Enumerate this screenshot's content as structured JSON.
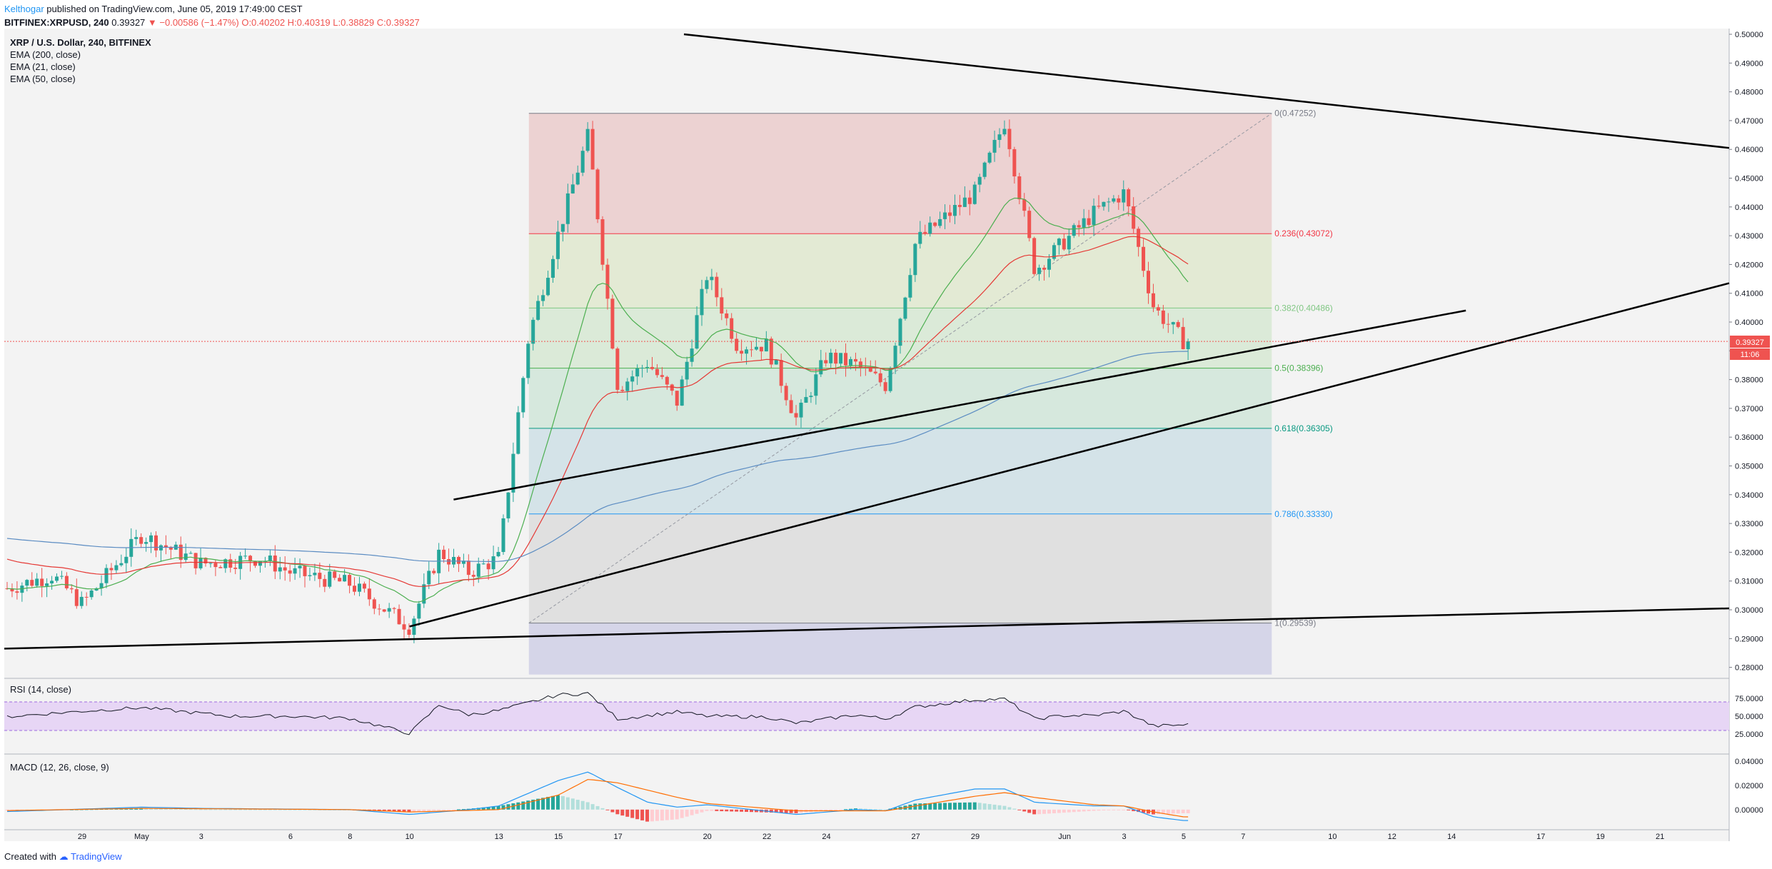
{
  "header": {
    "author": "Kelthogar",
    "published": "published on TradingView.com, June 05, 2019 17:49:00 CEST",
    "symbol_line": "BITFINEX:XRPUSD, 240",
    "last": "0.39327",
    "change": "▼ −0.00586 (−1.47%)",
    "open": "O:0.40202",
    "high": "H:0.40319",
    "low": "L:0.38829",
    "close": "C:0.39327"
  },
  "legend": {
    "pair": "XRP / U.S. Dollar, 240, BITFINEX",
    "ema200": "EMA (200, close)",
    "ema21": "EMA (21, close)",
    "ema50": "EMA (50, close)",
    "rsi": "RSI (14, close)",
    "macd": "MACD (12, 26, close, 9)"
  },
  "price_tag": {
    "value": "0.39327",
    "countdown": "11:06"
  },
  "footer": {
    "created_with": "Created with",
    "brand": "TradingView"
  },
  "colors": {
    "candle_up": "#26a69a",
    "candle_down": "#ef5350",
    "ema200": "#5b8cc2",
    "ema21": "#4caf50",
    "ema50": "#e53935",
    "trendline": "#000000",
    "rsi": "#131722",
    "rsi_band": "#e7d6f5",
    "macd": "#2196f3",
    "signal": "#ff6d00"
  },
  "chart_data": {
    "type": "candlestick",
    "title": "XRP / U.S. Dollar, 240, BITFINEX",
    "price_axis": {
      "ylim": [
        0.275,
        0.5
      ],
      "ticks": [
        "0.50000",
        "0.49000",
        "0.48000",
        "0.47000",
        "0.46000",
        "0.45000",
        "0.44000",
        "0.43000",
        "0.42000",
        "0.41000",
        "0.40000",
        "0.39000",
        "0.38000",
        "0.37000",
        "0.36000",
        "0.35000",
        "0.34000",
        "0.33000",
        "0.32000",
        "0.31000",
        "0.30000",
        "0.29000",
        "0.28000"
      ]
    },
    "time_axis": {
      "ticks": [
        "29",
        "May",
        "3",
        "6",
        "8",
        "10",
        "13",
        "15",
        "17",
        "20",
        "22",
        "24",
        "27",
        "29",
        "Jun",
        "3",
        "5",
        "7",
        "10",
        "12",
        "14",
        "17",
        "19",
        "21"
      ]
    },
    "price_path": [
      {
        "d": "Apr 26",
        "p": 0.306
      },
      {
        "d": "Apr 28",
        "p": 0.312
      },
      {
        "d": "Apr 29",
        "p": 0.302
      },
      {
        "d": "May 1",
        "p": 0.326
      },
      {
        "d": "May 3",
        "p": 0.316
      },
      {
        "d": "May 5",
        "p": 0.318
      },
      {
        "d": "May 6",
        "p": 0.313
      },
      {
        "d": "May 8",
        "p": 0.309
      },
      {
        "d": "May 10",
        "p": 0.294
      },
      {
        "d": "May 11",
        "p": 0.32
      },
      {
        "d": "May 12",
        "p": 0.313
      },
      {
        "d": "May 13",
        "p": 0.318
      },
      {
        "d": "May 14",
        "p": 0.395
      },
      {
        "d": "May 15",
        "p": 0.431
      },
      {
        "d": "May 16",
        "p": 0.465
      },
      {
        "d": "May 17",
        "p": 0.377
      },
      {
        "d": "May 18",
        "p": 0.386
      },
      {
        "d": "May 19",
        "p": 0.372
      },
      {
        "d": "May 20",
        "p": 0.417
      },
      {
        "d": "May 21",
        "p": 0.392
      },
      {
        "d": "May 22",
        "p": 0.392
      },
      {
        "d": "May 23",
        "p": 0.366
      },
      {
        "d": "May 24",
        "p": 0.388
      },
      {
        "d": "May 25",
        "p": 0.385
      },
      {
        "d": "May 26",
        "p": 0.378
      },
      {
        "d": "May 27",
        "p": 0.428
      },
      {
        "d": "May 29",
        "p": 0.445
      },
      {
        "d": "May 30",
        "p": 0.47
      },
      {
        "d": "May 31",
        "p": 0.418
      },
      {
        "d": "Jun 1",
        "p": 0.428
      },
      {
        "d": "Jun 2",
        "p": 0.438
      },
      {
        "d": "Jun 3",
        "p": 0.445
      },
      {
        "d": "Jun 4",
        "p": 0.405
      },
      {
        "d": "Jun 5",
        "p": 0.39327
      }
    ],
    "fibonacci": [
      {
        "label": "0(0.47252)",
        "value": 0.47252,
        "color": "#787b86"
      },
      {
        "label": "0.236(0.43072)",
        "value": 0.43072,
        "color": "#f23645"
      },
      {
        "label": "0.382(0.40486)",
        "value": 0.40486,
        "color": "#81c784"
      },
      {
        "label": "0.5(0.38396)",
        "value": 0.38396,
        "color": "#4caf50"
      },
      {
        "label": "0.618(0.36305)",
        "value": 0.36305,
        "color": "#089981"
      },
      {
        "label": "0.786(0.33330)",
        "value": 0.3333,
        "color": "#2196f3"
      },
      {
        "label": "1(0.29539)",
        "value": 0.29539,
        "color": "#787b86"
      }
    ],
    "rsi": {
      "ticks": [
        "75.0000",
        "50.0000",
        "25.0000"
      ],
      "band": [
        30,
        70
      ],
      "path": [
        {
          "d": "Apr 26",
          "v": 48
        },
        {
          "d": "Apr 29",
          "v": 57
        },
        {
          "d": "May 1",
          "v": 62
        },
        {
          "d": "May 4",
          "v": 50
        },
        {
          "d": "May 6",
          "v": 50
        },
        {
          "d": "May 8",
          "v": 47
        },
        {
          "d": "May 10",
          "v": 26
        },
        {
          "d": "May 11",
          "v": 66
        },
        {
          "d": "May 12",
          "v": 52
        },
        {
          "d": "May 13",
          "v": 58
        },
        {
          "d": "May 15",
          "v": 80
        },
        {
          "d": "May 16",
          "v": 82
        },
        {
          "d": "May 17",
          "v": 46
        },
        {
          "d": "May 19",
          "v": 56
        },
        {
          "d": "May 20",
          "v": 50
        },
        {
          "d": "May 22",
          "v": 49
        },
        {
          "d": "May 23",
          "v": 40
        },
        {
          "d": "May 25",
          "v": 52
        },
        {
          "d": "May 26",
          "v": 46
        },
        {
          "d": "May 27",
          "v": 63
        },
        {
          "d": "May 29",
          "v": 73
        },
        {
          "d": "May 30",
          "v": 74
        },
        {
          "d": "May 31",
          "v": 46
        },
        {
          "d": "Jun 1",
          "v": 51
        },
        {
          "d": "Jun 2",
          "v": 51
        },
        {
          "d": "Jun 3",
          "v": 57
        },
        {
          "d": "Jun 4",
          "v": 36
        },
        {
          "d": "Jun 5",
          "v": 38
        }
      ]
    },
    "macd": {
      "ticks": [
        "0.04000",
        "0.02000",
        "0.00000"
      ],
      "ylim": [
        -0.012,
        0.044
      ],
      "macd_line": [
        {
          "d": "Apr 26",
          "v": -0.002
        },
        {
          "d": "May 1",
          "v": 0.002
        },
        {
          "d": "May 3",
          "v": 0.001
        },
        {
          "d": "May 8",
          "v": 0.0
        },
        {
          "d": "May 10",
          "v": -0.004
        },
        {
          "d": "May 12",
          "v": 0.0
        },
        {
          "d": "May 13",
          "v": 0.003
        },
        {
          "d": "May 15",
          "v": 0.024
        },
        {
          "d": "May 16",
          "v": 0.031
        },
        {
          "d": "May 17",
          "v": 0.018
        },
        {
          "d": "May 18",
          "v": 0.006
        },
        {
          "d": "May 19",
          "v": 0.002
        },
        {
          "d": "May 20",
          "v": 0.004
        },
        {
          "d": "May 23",
          "v": -0.004
        },
        {
          "d": "May 25",
          "v": 0.0
        },
        {
          "d": "May 26",
          "v": -0.001
        },
        {
          "d": "May 27",
          "v": 0.008
        },
        {
          "d": "May 29",
          "v": 0.017
        },
        {
          "d": "May 30",
          "v": 0.017
        },
        {
          "d": "May 31",
          "v": 0.006
        },
        {
          "d": "Jun 2",
          "v": 0.003
        },
        {
          "d": "Jun 3",
          "v": 0.003
        },
        {
          "d": "Jun 4",
          "v": -0.006
        },
        {
          "d": "Jun 5",
          "v": -0.009
        }
      ],
      "signal_line": [
        {
          "d": "Apr 26",
          "v": -0.001
        },
        {
          "d": "May 1",
          "v": 0.001
        },
        {
          "d": "May 8",
          "v": 0.0
        },
        {
          "d": "May 10",
          "v": -0.002
        },
        {
          "d": "May 13",
          "v": 0.0
        },
        {
          "d": "May 15",
          "v": 0.012
        },
        {
          "d": "May 16",
          "v": 0.025
        },
        {
          "d": "May 17",
          "v": 0.022
        },
        {
          "d": "May 19",
          "v": 0.01
        },
        {
          "d": "May 20",
          "v": 0.005
        },
        {
          "d": "May 23",
          "v": -0.001
        },
        {
          "d": "May 26",
          "v": -0.001
        },
        {
          "d": "May 27",
          "v": 0.003
        },
        {
          "d": "May 29",
          "v": 0.011
        },
        {
          "d": "May 30",
          "v": 0.014
        },
        {
          "d": "May 31",
          "v": 0.01
        },
        {
          "d": "Jun 2",
          "v": 0.004
        },
        {
          "d": "Jun 3",
          "v": 0.003
        },
        {
          "d": "Jun 4",
          "v": -0.002
        },
        {
          "d": "Jun 5",
          "v": -0.006
        }
      ]
    }
  }
}
